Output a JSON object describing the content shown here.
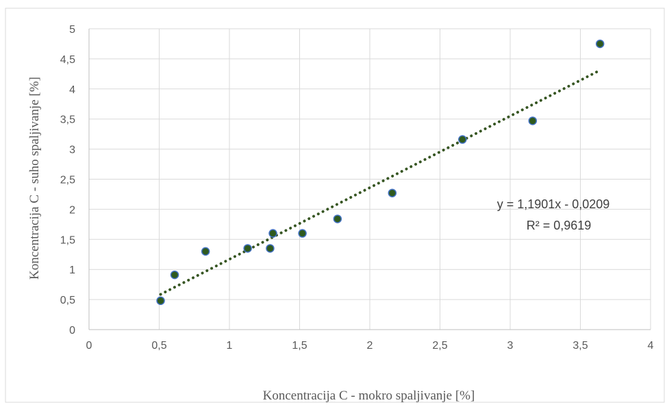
{
  "chart_data": {
    "type": "scatter",
    "xlabel": "Koncentracija C - mokro spaljivanje [%]",
    "ylabel": "Koncentracija C - suho spaljivanje [%]",
    "xlim": [
      0,
      4
    ],
    "ylim": [
      0,
      5
    ],
    "x_ticks": [
      0,
      0.5,
      1,
      1.5,
      2,
      2.5,
      3,
      3.5,
      4
    ],
    "y_ticks": [
      0,
      0.5,
      1,
      1.5,
      2,
      2.5,
      3,
      3.5,
      4,
      4.5,
      5
    ],
    "x_tick_labels": [
      "0",
      "0,5",
      "1",
      "1,5",
      "2",
      "2,5",
      "3",
      "3,5",
      "4"
    ],
    "y_tick_labels": [
      "0",
      "0,5",
      "1",
      "1,5",
      "2",
      "2,5",
      "3",
      "3,5",
      "4",
      "4,5",
      "5"
    ],
    "grid": true,
    "points": [
      {
        "x": 0.51,
        "y": 0.48
      },
      {
        "x": 0.61,
        "y": 0.91
      },
      {
        "x": 0.83,
        "y": 1.3
      },
      {
        "x": 1.13,
        "y": 1.35
      },
      {
        "x": 1.29,
        "y": 1.35
      },
      {
        "x": 1.31,
        "y": 1.6
      },
      {
        "x": 1.52,
        "y": 1.6
      },
      {
        "x": 1.77,
        "y": 1.84
      },
      {
        "x": 2.16,
        "y": 2.27
      },
      {
        "x": 2.66,
        "y": 3.16
      },
      {
        "x": 3.16,
        "y": 3.47
      },
      {
        "x": 3.64,
        "y": 4.75
      }
    ],
    "trendline": {
      "type": "linear",
      "slope": 1.1901,
      "intercept": -0.0209,
      "x_range": [
        0.51,
        3.64
      ],
      "equation_label": "y = 1,1901x - 0,0209",
      "r2_label": "R² = 0,9619"
    },
    "colors": {
      "marker_fill": "#2f5a1e",
      "marker_stroke": "#4472c4",
      "trendline": "#375623",
      "grid": "#d9d9d9",
      "axis": "#bfbfbf"
    }
  }
}
